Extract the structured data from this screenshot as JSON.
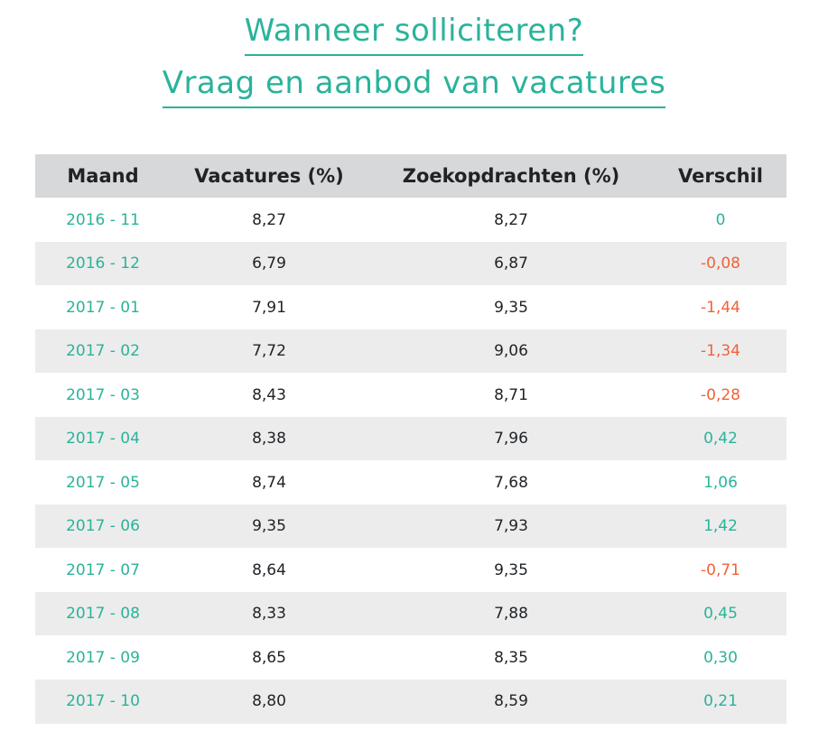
{
  "title": "Wanneer solliciteren?",
  "subtitle": "Vraag en aanbod van vacatures",
  "colors": {
    "accent": "#2ab39a",
    "negative": "#f0623a",
    "header_bg": "#d6d8da",
    "row_alt_bg": "#ececec"
  },
  "chart_data": {
    "type": "table",
    "title": "Wanneer solliciteren?",
    "subtitle": "Vraag en aanbod van vacatures",
    "columns": [
      "Maand",
      "Vacatures (%)",
      "Zoekopdrachten (%)",
      "Verschil"
    ],
    "rows": [
      {
        "maand": "2016 - 11",
        "vacatures": "8,27",
        "zoekopdrachten": "8,27",
        "verschil": "0",
        "sign": "pos"
      },
      {
        "maand": "2016 - 12",
        "vacatures": "6,79",
        "zoekopdrachten": "6,87",
        "verschil": "-0,08",
        "sign": "neg"
      },
      {
        "maand": "2017 - 01",
        "vacatures": "7,91",
        "zoekopdrachten": "9,35",
        "verschil": "-1,44",
        "sign": "neg"
      },
      {
        "maand": "2017 - 02",
        "vacatures": "7,72",
        "zoekopdrachten": "9,06",
        "verschil": "-1,34",
        "sign": "neg"
      },
      {
        "maand": "2017 - 03",
        "vacatures": "8,43",
        "zoekopdrachten": "8,71",
        "verschil": "-0,28",
        "sign": "neg"
      },
      {
        "maand": "2017 - 04",
        "vacatures": "8,38",
        "zoekopdrachten": "7,96",
        "verschil": "0,42",
        "sign": "pos"
      },
      {
        "maand": "2017 - 05",
        "vacatures": "8,74",
        "zoekopdrachten": "7,68",
        "verschil": "1,06",
        "sign": "pos"
      },
      {
        "maand": "2017 - 06",
        "vacatures": "9,35",
        "zoekopdrachten": "7,93",
        "verschil": "1,42",
        "sign": "pos"
      },
      {
        "maand": "2017 - 07",
        "vacatures": "8,64",
        "zoekopdrachten": "9,35",
        "verschil": "-0,71",
        "sign": "neg"
      },
      {
        "maand": "2017 - 08",
        "vacatures": "8,33",
        "zoekopdrachten": "7,88",
        "verschil": "0,45",
        "sign": "pos"
      },
      {
        "maand": "2017 - 09",
        "vacatures": "8,65",
        "zoekopdrachten": "8,35",
        "verschil": "0,30",
        "sign": "pos"
      },
      {
        "maand": "2017 - 10",
        "vacatures": "8,80",
        "zoekopdrachten": "8,59",
        "verschil": "0,21",
        "sign": "pos"
      }
    ]
  }
}
